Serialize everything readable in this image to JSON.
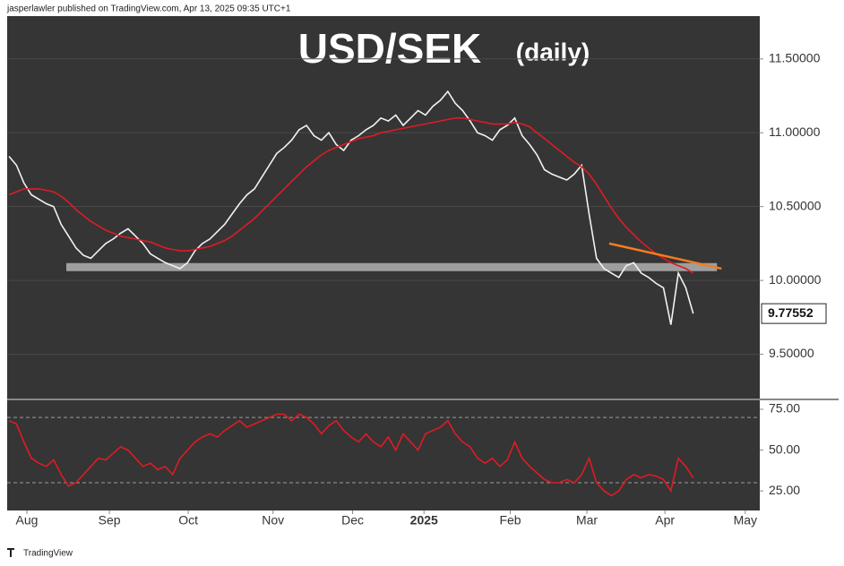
{
  "header": "jasperlawler published on TradingView.com, Apr 13, 2025 09:35 UTC+1",
  "footer": "TradingView",
  "chart_data": [
    {
      "type": "line",
      "title": "USD/SEK",
      "subtitle": "(daily)",
      "xlim": [
        -0.25,
        100.95
      ],
      "ylim": [
        9.2,
        11.79
      ],
      "yticks": [
        {
          "value": 9.5,
          "label": "9.50000"
        },
        {
          "value": 10,
          "label": "10.00000"
        },
        {
          "value": 10.5,
          "label": "10.50000"
        },
        {
          "value": 11,
          "label": "11.00000"
        },
        {
          "value": 11.5,
          "label": "11.50000"
        }
      ],
      "grid": true,
      "series": [
        {
          "color": "#f2f2f2",
          "values": [
            10.84,
            10.78,
            10.66,
            10.58,
            10.55,
            10.52,
            10.5,
            10.38,
            10.3,
            10.22,
            10.17,
            10.15,
            10.2,
            10.25,
            10.28,
            10.32,
            10.35,
            10.3,
            10.25,
            10.18,
            10.15,
            10.12,
            10.1,
            10.08,
            10.12,
            10.2,
            10.25,
            10.28,
            10.33,
            10.38,
            10.45,
            10.52,
            10.58,
            10.62,
            10.7,
            10.78,
            10.86,
            10.9,
            10.95,
            11.02,
            11.05,
            10.98,
            10.95,
            11.0,
            10.92,
            10.88,
            10.95,
            10.98,
            11.02,
            11.05,
            11.1,
            11.08,
            11.12,
            11.05,
            11.1,
            11.15,
            11.12,
            11.18,
            11.22,
            11.28,
            11.2,
            11.15,
            11.08,
            11.0,
            10.98,
            10.95,
            11.02,
            11.05,
            11.1,
            10.98,
            10.92,
            10.85,
            10.75,
            10.72,
            10.7,
            10.68,
            10.72,
            10.78,
            10.45,
            10.15,
            10.08,
            10.05,
            10.02,
            10.1,
            10.12,
            10.05,
            10.02,
            9.98,
            9.95,
            9.7,
            10.05,
            9.95,
            9.77552
          ]
        },
        {
          "color": "#e01b24",
          "values": [
            10.58,
            10.6,
            10.62,
            10.62,
            10.62,
            10.61,
            10.6,
            10.57,
            10.53,
            10.48,
            10.44,
            10.4,
            10.37,
            10.34,
            10.32,
            10.3,
            10.29,
            10.28,
            10.27,
            10.26,
            10.24,
            10.22,
            10.21,
            10.2,
            10.2,
            10.21,
            10.22,
            10.23,
            10.25,
            10.27,
            10.3,
            10.34,
            10.38,
            10.42,
            10.47,
            10.52,
            10.57,
            10.62,
            10.67,
            10.72,
            10.77,
            10.81,
            10.85,
            10.88,
            10.9,
            10.92,
            10.94,
            10.96,
            10.97,
            10.98,
            11.0,
            11.01,
            11.02,
            11.03,
            11.04,
            11.05,
            11.06,
            11.07,
            11.08,
            11.09,
            11.1,
            11.1,
            11.09,
            11.08,
            11.07,
            11.06,
            11.06,
            11.06,
            11.07,
            11.06,
            11.04,
            11.0,
            10.96,
            10.92,
            10.88,
            10.84,
            10.8,
            10.77,
            10.72,
            10.65,
            10.57,
            10.49,
            10.42,
            10.36,
            10.31,
            10.26,
            10.22,
            10.18,
            10.15,
            10.12,
            10.1,
            10.08,
            10.05
          ]
        }
      ],
      "last_value_label": "9.77552",
      "support_band": {
        "x": [
          7.7,
          95.2
        ],
        "value": 10.09,
        "color": "#b0b0b0"
      },
      "trendline": {
        "x": [
          80.7,
          95.8
        ],
        "values": [
          10.25,
          10.08
        ],
        "color": "#f57c1f"
      }
    },
    {
      "type": "line",
      "xlim": [
        -0.25,
        100.95
      ],
      "ylim": [
        13,
        80.5
      ],
      "yticks": [
        {
          "value": 25,
          "label": "25.00"
        },
        {
          "value": 50,
          "label": "50.00"
        },
        {
          "value": 75,
          "label": "75.00"
        }
      ],
      "levels": [
        30,
        70
      ],
      "xticks": [
        {
          "value": 2.4,
          "label": "Aug"
        },
        {
          "value": 13.5,
          "label": "Sep"
        },
        {
          "value": 24.1,
          "label": "Oct"
        },
        {
          "value": 35.5,
          "label": "Nov"
        },
        {
          "value": 46.2,
          "label": "Dec"
        },
        {
          "value": 55.8,
          "label": "2025"
        },
        {
          "value": 67.4,
          "label": "Feb"
        },
        {
          "value": 77.7,
          "label": "Mar"
        },
        {
          "value": 88.2,
          "label": "Apr"
        },
        {
          "value": 99,
          "label": "May"
        }
      ],
      "series": [
        {
          "color": "#e01b24",
          "values": [
            68,
            66,
            55,
            45,
            42,
            40,
            44,
            35,
            28,
            30,
            35,
            40,
            45,
            44,
            48,
            52,
            50,
            45,
            40,
            42,
            38,
            40,
            35,
            45,
            50,
            55,
            58,
            60,
            58,
            62,
            65,
            68,
            64,
            66,
            68,
            70,
            72,
            72,
            68,
            72,
            70,
            66,
            60,
            65,
            68,
            62,
            58,
            55,
            60,
            55,
            52,
            58,
            50,
            60,
            55,
            50,
            60,
            62,
            64,
            68,
            60,
            55,
            52,
            45,
            42,
            45,
            40,
            44,
            55,
            45,
            40,
            36,
            32,
            30,
            30,
            32,
            30,
            35,
            45,
            30,
            25,
            22,
            25,
            32,
            35,
            33,
            35,
            34,
            32,
            25,
            45,
            40,
            33
          ]
        }
      ]
    }
  ]
}
